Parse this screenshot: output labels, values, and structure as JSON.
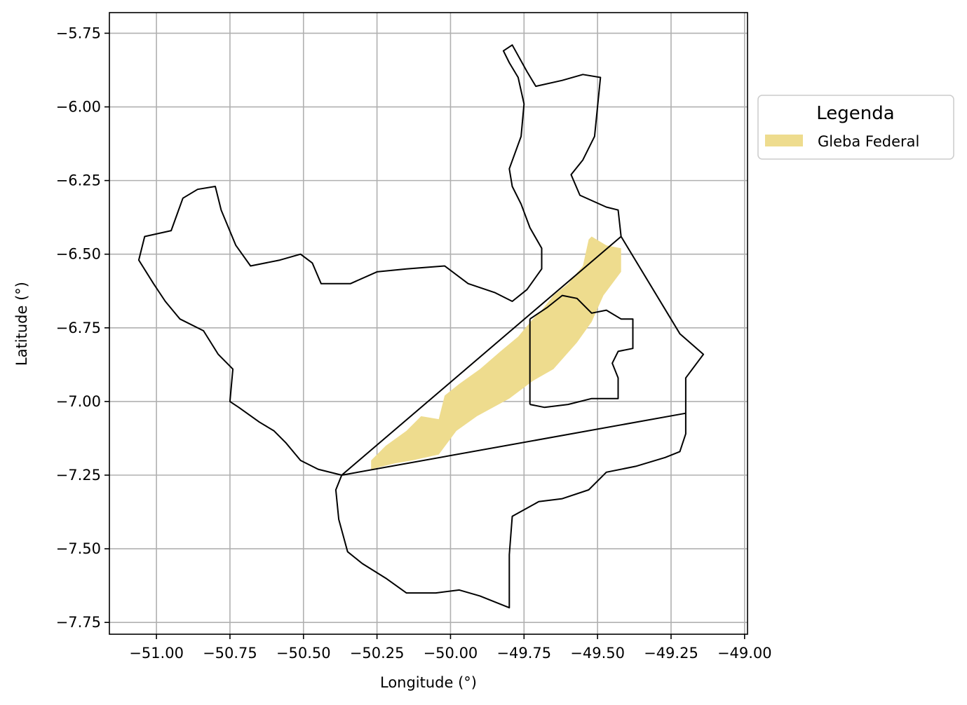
{
  "chart_data": {
    "type": "map",
    "title": "",
    "xlabel": "Longitude (°)",
    "ylabel": "Latitude (°)",
    "xlim": [
      -51.16,
      -48.99
    ],
    "ylim": [
      -7.79,
      -5.68
    ],
    "x_ticks": [
      -51.0,
      -50.75,
      -50.5,
      -50.25,
      -50.0,
      -49.75,
      -49.5,
      -49.25,
      -49.0
    ],
    "x_tick_labels": [
      "−51.00",
      "−50.75",
      "−50.50",
      "−50.25",
      "−50.00",
      "−49.75",
      "−49.50",
      "−49.25",
      "−49.00"
    ],
    "y_ticks": [
      -5.75,
      -6.0,
      -6.25,
      -6.5,
      -6.75,
      -7.0,
      -7.25,
      -7.5,
      -7.75
    ],
    "y_tick_labels": [
      "−5.75",
      "−6.00",
      "−6.25",
      "−6.50",
      "−6.75",
      "−7.00",
      "−7.25",
      "−7.50",
      "−7.75"
    ],
    "grid": true,
    "legend": {
      "title": "Legenda",
      "placement": "outside-right-top",
      "entries": [
        {
          "label": "Gleba Federal",
          "color": "#eedc8e"
        }
      ]
    },
    "layers": [
      {
        "name": "Gleba Federal",
        "color": "#eedc8e",
        "coordinates": [
          [
            -50.27,
            -7.23
          ],
          [
            -50.19,
            -7.21
          ],
          [
            -50.13,
            -7.2
          ],
          [
            -50.04,
            -7.18
          ],
          [
            -49.98,
            -7.1
          ],
          [
            -49.91,
            -7.05
          ],
          [
            -49.8,
            -6.99
          ],
          [
            -49.72,
            -6.93
          ],
          [
            -49.65,
            -6.89
          ],
          [
            -49.57,
            -6.8
          ],
          [
            -49.52,
            -6.73
          ],
          [
            -49.48,
            -6.64
          ],
          [
            -49.42,
            -6.56
          ],
          [
            -49.42,
            -6.48
          ],
          [
            -49.47,
            -6.47
          ],
          [
            -49.52,
            -6.44
          ],
          [
            -49.53,
            -6.45
          ],
          [
            -49.55,
            -6.54
          ],
          [
            -49.6,
            -6.6
          ],
          [
            -49.65,
            -6.64
          ],
          [
            -49.69,
            -6.69
          ],
          [
            -49.72,
            -6.72
          ],
          [
            -49.77,
            -6.78
          ],
          [
            -49.83,
            -6.83
          ],
          [
            -49.9,
            -6.89
          ],
          [
            -49.97,
            -6.94
          ],
          [
            -50.02,
            -6.98
          ],
          [
            -50.04,
            -7.06
          ],
          [
            -50.1,
            -7.05
          ],
          [
            -50.15,
            -7.1
          ],
          [
            -50.22,
            -7.15
          ],
          [
            -50.27,
            -7.2
          ]
        ]
      }
    ],
    "outlines": [
      {
        "name": "outer-boundary",
        "color": "#000000",
        "coordinates": [
          [
            -50.37,
            -7.25
          ],
          [
            -50.45,
            -7.23
          ],
          [
            -50.51,
            -7.2
          ],
          [
            -50.56,
            -7.14
          ],
          [
            -50.6,
            -7.1
          ],
          [
            -50.65,
            -7.07
          ],
          [
            -50.72,
            -7.02
          ],
          [
            -50.75,
            -7.0
          ],
          [
            -50.74,
            -6.89
          ],
          [
            -50.79,
            -6.84
          ],
          [
            -50.84,
            -6.76
          ],
          [
            -50.92,
            -6.72
          ],
          [
            -50.97,
            -6.66
          ],
          [
            -51.01,
            -6.6
          ],
          [
            -51.06,
            -6.52
          ],
          [
            -51.04,
            -6.44
          ],
          [
            -50.95,
            -6.42
          ],
          [
            -50.91,
            -6.31
          ],
          [
            -50.86,
            -6.28
          ],
          [
            -50.8,
            -6.27
          ],
          [
            -50.78,
            -6.35
          ],
          [
            -50.73,
            -6.47
          ],
          [
            -50.68,
            -6.54
          ],
          [
            -50.58,
            -6.52
          ],
          [
            -50.51,
            -6.5
          ],
          [
            -50.47,
            -6.53
          ],
          [
            -50.44,
            -6.6
          ],
          [
            -50.34,
            -6.6
          ],
          [
            -50.25,
            -6.56
          ],
          [
            -50.15,
            -6.55
          ],
          [
            -50.02,
            -6.54
          ],
          [
            -49.94,
            -6.6
          ],
          [
            -49.85,
            -6.63
          ],
          [
            -49.79,
            -6.66
          ],
          [
            -49.74,
            -6.62
          ],
          [
            -49.69,
            -6.55
          ],
          [
            -49.69,
            -6.48
          ],
          [
            -49.73,
            -6.41
          ],
          [
            -49.76,
            -6.33
          ],
          [
            -49.79,
            -6.27
          ],
          [
            -49.8,
            -6.21
          ],
          [
            -49.76,
            -6.1
          ],
          [
            -49.75,
            -5.99
          ],
          [
            -49.77,
            -5.9
          ],
          [
            -49.8,
            -5.85
          ],
          [
            -49.82,
            -5.81
          ],
          [
            -49.79,
            -5.79
          ],
          [
            -49.74,
            -5.88
          ],
          [
            -49.71,
            -5.93
          ],
          [
            -49.62,
            -5.91
          ],
          [
            -49.55,
            -5.89
          ],
          [
            -49.49,
            -5.9
          ],
          [
            -49.5,
            -6.0
          ],
          [
            -49.51,
            -6.1
          ],
          [
            -49.55,
            -6.18
          ],
          [
            -49.59,
            -6.23
          ],
          [
            -49.56,
            -6.3
          ],
          [
            -49.47,
            -6.34
          ],
          [
            -49.43,
            -6.35
          ],
          [
            -49.42,
            -6.44
          ],
          [
            -49.22,
            -6.77
          ],
          [
            -49.14,
            -6.84
          ],
          [
            -49.2,
            -6.92
          ],
          [
            -49.2,
            -7.04
          ],
          [
            -49.2,
            -7.11
          ],
          [
            -49.22,
            -7.17
          ],
          [
            -49.27,
            -7.19
          ],
          [
            -49.37,
            -7.22
          ],
          [
            -49.47,
            -7.24
          ],
          [
            -49.53,
            -7.3
          ],
          [
            -49.62,
            -7.33
          ],
          [
            -49.7,
            -7.34
          ],
          [
            -49.79,
            -7.39
          ],
          [
            -49.8,
            -7.52
          ],
          [
            -49.8,
            -7.7
          ],
          [
            -49.9,
            -7.66
          ],
          [
            -49.97,
            -7.64
          ],
          [
            -50.05,
            -7.65
          ],
          [
            -50.15,
            -7.65
          ],
          [
            -50.22,
            -7.6
          ],
          [
            -50.3,
            -7.55
          ],
          [
            -50.35,
            -7.51
          ],
          [
            -50.38,
            -7.4
          ],
          [
            -50.39,
            -7.3
          ]
        ]
      },
      {
        "name": "inner-division",
        "color": "#000000",
        "coordinates": [
          [
            -49.73,
            -6.72
          ],
          [
            -49.67,
            -6.68
          ],
          [
            -49.62,
            -6.64
          ],
          [
            -49.57,
            -6.65
          ],
          [
            -49.52,
            -6.7
          ],
          [
            -49.47,
            -6.69
          ],
          [
            -49.42,
            -6.72
          ],
          [
            -49.38,
            -6.72
          ],
          [
            -49.38,
            -6.82
          ],
          [
            -49.43,
            -6.83
          ],
          [
            -49.45,
            -6.87
          ],
          [
            -49.43,
            -6.92
          ],
          [
            -49.43,
            -6.99
          ],
          [
            -49.52,
            -6.99
          ],
          [
            -49.6,
            -7.01
          ],
          [
            -49.68,
            -7.02
          ],
          [
            -49.73,
            -7.01
          ]
        ]
      },
      {
        "name": "line-a",
        "color": "#000000",
        "coordinates": [
          [
            -50.37,
            -7.25
          ],
          [
            -49.42,
            -6.44
          ]
        ]
      },
      {
        "name": "line-b",
        "color": "#000000",
        "coordinates": [
          [
            -50.37,
            -7.25
          ],
          [
            -49.2,
            -7.04
          ]
        ]
      },
      {
        "name": "line-c",
        "color": "#000000",
        "coordinates": [
          [
            -49.73,
            -6.72
          ],
          [
            -49.73,
            -7.01
          ]
        ]
      }
    ]
  }
}
